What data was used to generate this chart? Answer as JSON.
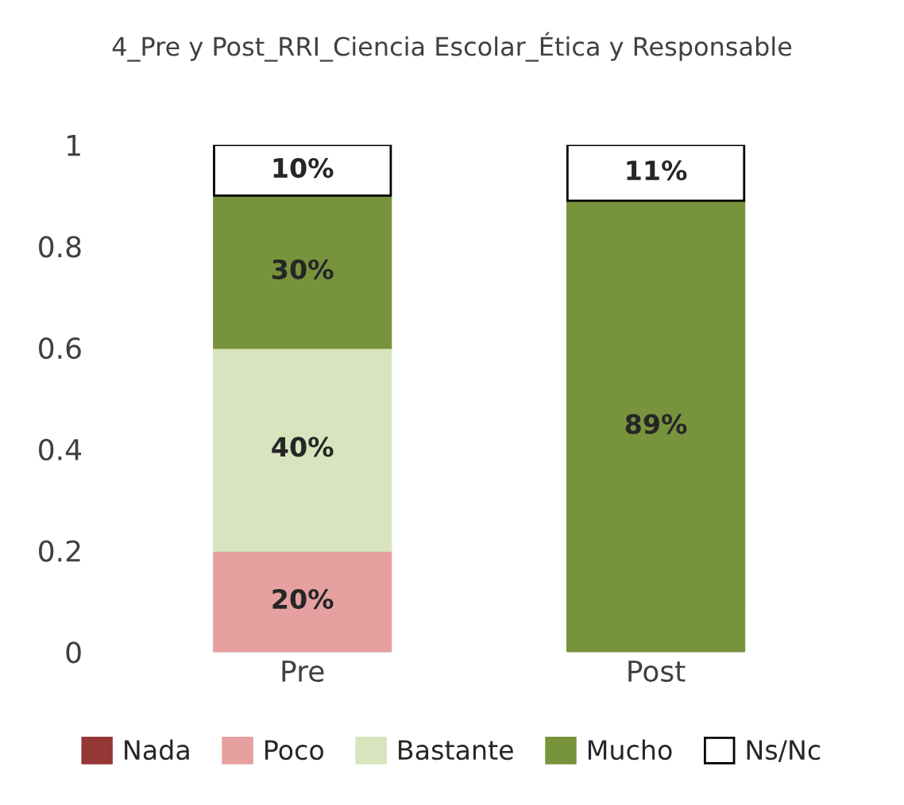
{
  "chart_data": {
    "type": "bar",
    "title": "4_Pre y Post_RRI_Ciencia Escolar_Ética y Responsable",
    "stacked": true,
    "categories": [
      "Pre",
      "Post"
    ],
    "series": [
      {
        "name": "Nada",
        "color": "#953735",
        "values": [
          0,
          0
        ]
      },
      {
        "name": "Poco",
        "color": "#e6a0a0",
        "values": [
          0.2,
          0
        ],
        "value_labels": [
          "20%",
          null
        ]
      },
      {
        "name": "Bastante",
        "color": "#d7e4bd",
        "values": [
          0.4,
          0
        ],
        "value_labels": [
          "40%",
          null
        ]
      },
      {
        "name": "Mucho",
        "color": "#77933c",
        "values": [
          0.3,
          0.89
        ],
        "value_labels": [
          "30%",
          "89%"
        ]
      },
      {
        "name": "Ns/Nc",
        "color": "#ffffff",
        "values": [
          0.1,
          0.11
        ],
        "value_labels": [
          "10%",
          "11%"
        ]
      }
    ],
    "ylim": [
      0,
      1
    ],
    "yticks": [
      0,
      0.2,
      0.4,
      0.6,
      0.8,
      1
    ],
    "grid": false,
    "legend": "bottom"
  }
}
